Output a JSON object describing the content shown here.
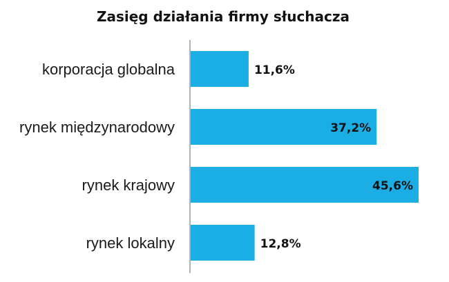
{
  "chart_data": {
    "type": "bar",
    "orientation": "horizontal",
    "title": "Zasięg działania firmy słuchacza",
    "categories": [
      "korporacja globalna",
      "rynek międzynarodowy",
      "rynek krajowy",
      "rynek lokalny"
    ],
    "values": [
      11.6,
      37.2,
      45.6,
      12.8
    ],
    "value_labels": [
      "11,6%",
      "37,2%",
      "45,6%",
      "12,8%"
    ],
    "unit": "%",
    "xlim": [
      0,
      45.6
    ],
    "grid": false,
    "legend": "none"
  },
  "colors": {
    "bar": "#1aaee5",
    "axis": "#999999",
    "text": "#111111"
  }
}
